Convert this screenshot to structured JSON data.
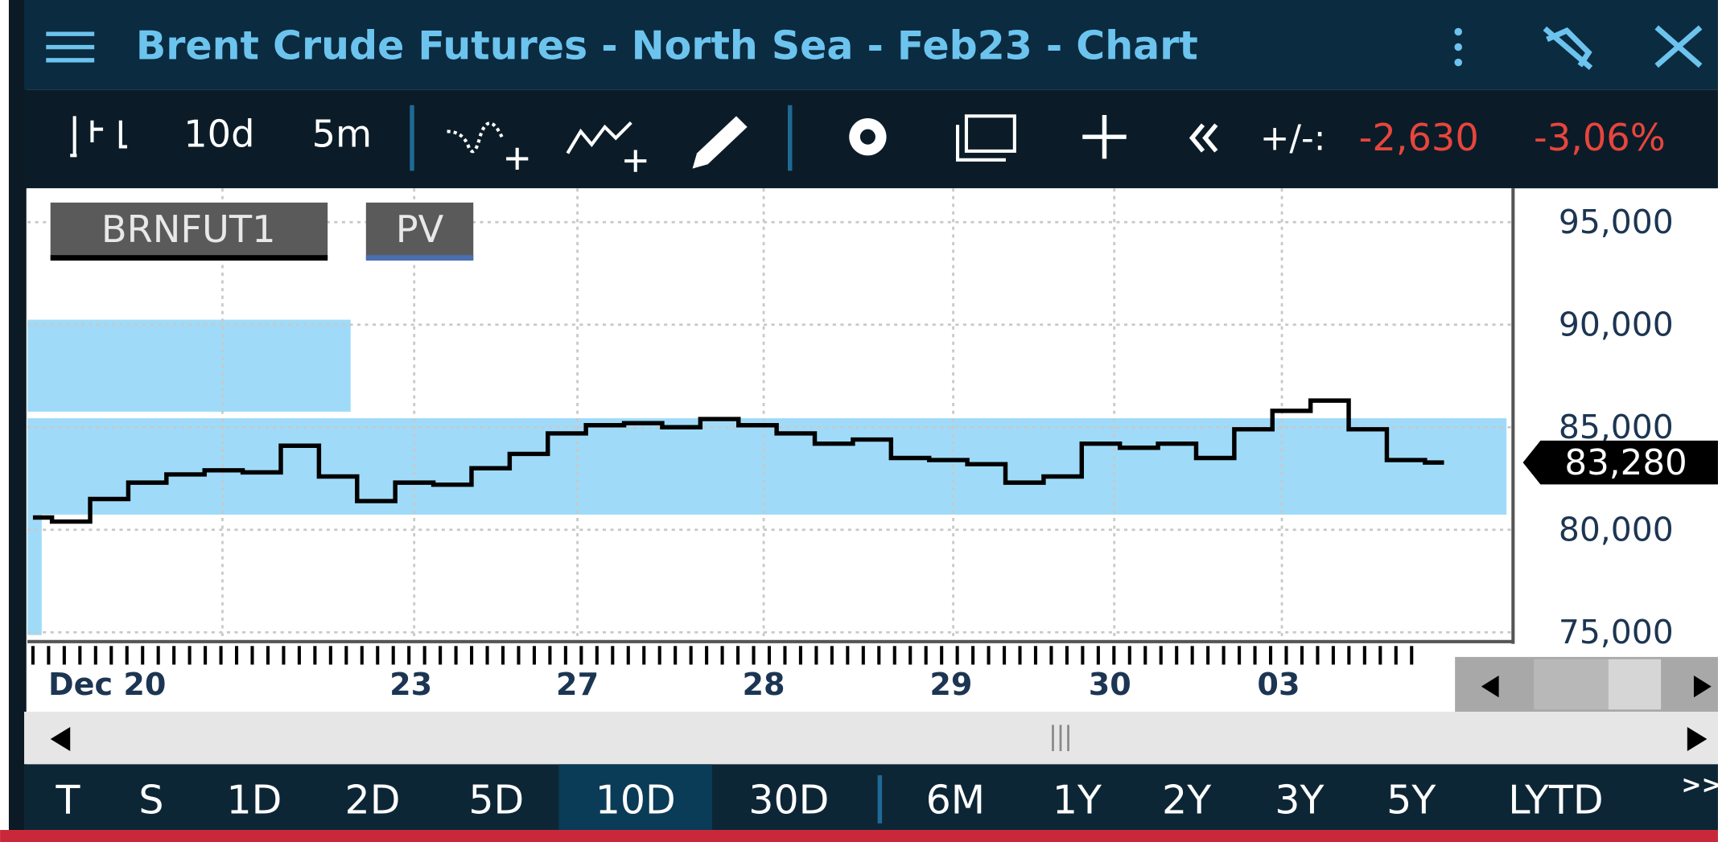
{
  "header": {
    "title": "Brent Crude Futures - North Sea - Feb23 - Chart"
  },
  "toolbar": {
    "period": "10d",
    "interval": "5m",
    "change_label": "+/-:",
    "change": "-2,630",
    "change_pct": "-3,06%"
  },
  "tags": [
    "BRNFUT1",
    "PV"
  ],
  "chart": {
    "type": "line",
    "color": "#000000",
    "values": [
      80600,
      80400,
      81500,
      82300,
      82700,
      82900,
      82800,
      84100,
      82600,
      81400,
      82300,
      82200,
      83000,
      83700,
      84700,
      85100,
      85200,
      85000,
      85400,
      85100,
      84700,
      84200,
      84400,
      83500,
      83400,
      83200,
      82300,
      82600,
      84200,
      84000,
      84200,
      83500,
      84900,
      85800,
      86300,
      84900,
      83400,
      83280
    ],
    "last_value_label": "83,280",
    "ylim": [
      74600,
      96650
    ],
    "yticks": [
      {
        "value": 95000,
        "label": "95,000"
      },
      {
        "value": 90000,
        "label": "90,000"
      },
      {
        "value": 85000,
        "label": "85,000"
      },
      {
        "value": 80000,
        "label": "80,000"
      },
      {
        "value": 75000,
        "label": "75,000"
      }
    ],
    "grid": true,
    "categories": [
      "Dec 20",
      "23",
      "27",
      "28",
      "29",
      "30",
      "03"
    ]
  },
  "ranges": [
    "T",
    "S",
    "1D",
    "2D",
    "5D",
    "10D",
    "30D",
    "6M",
    "1Y",
    "2Y",
    "3Y",
    "5Y",
    "LYTD"
  ],
  "selected_range": "10D",
  "more": ">>"
}
